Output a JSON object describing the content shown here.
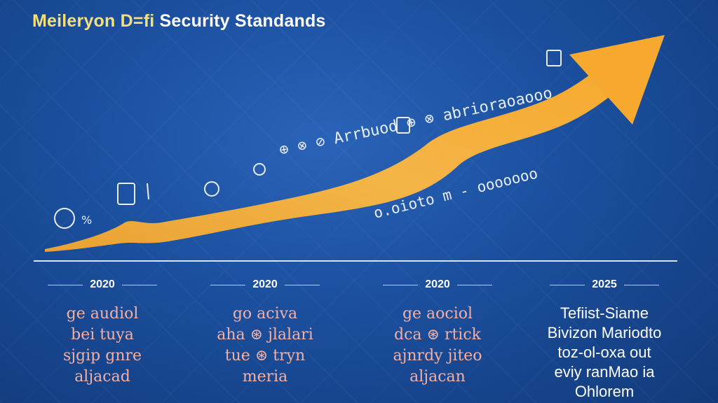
{
  "header": {
    "title_highlight": "Meileryon D=fi",
    "title_rest": " Security Standands"
  },
  "arrow": {
    "upper_label": "⊕ ⊗ ⊘ Arrbuod ⊕ ⊗ abrioraoaooo",
    "lower_label": "o.oioto m - ooooooo",
    "color": "#f2a93b"
  },
  "timeline": [
    {
      "year": "2020",
      "lines": [
        "ge audiol",
        "bei tuya",
        "sjgip gnre",
        "aljacad"
      ]
    },
    {
      "year": "2020",
      "lines": [
        "go aciva",
        "aha ⊛ jlalari",
        "tue ⊛ tryn",
        "meria"
      ]
    },
    {
      "year": "2020",
      "lines": [
        "ge aociol",
        "dca ⊛ rtick",
        "ajnrdy jiteo",
        "aljacan"
      ]
    },
    {
      "year": "2025",
      "lines": [
        "Tefiist-Siame",
        "Bivizon Mariodto",
        "toz-ol-oxa out",
        "eviy ranMao ia",
        "Ohlorem"
      ]
    }
  ],
  "colors": {
    "background": "#1b4f9e",
    "title_highlight": "#f3e07a",
    "year_rule": "#e3cf6a",
    "description_text": "#f2b0a4"
  }
}
